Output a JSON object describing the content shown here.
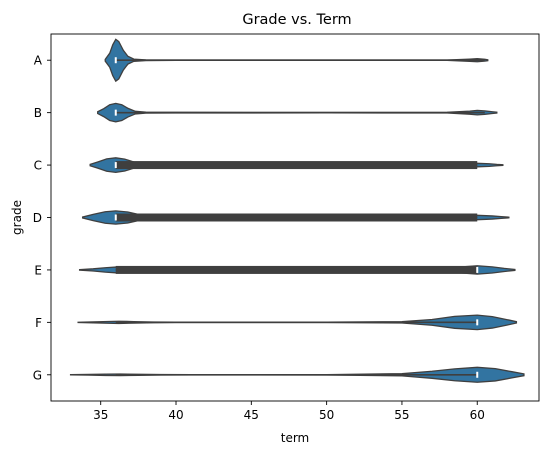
{
  "chart_data": {
    "type": "violin",
    "title": "Grade vs. Term",
    "xlabel": "term",
    "ylabel": "grade",
    "orientation": "horizontal",
    "categories": [
      "A",
      "B",
      "C",
      "D",
      "E",
      "F",
      "G"
    ],
    "xlim": [
      31.7,
      64.1
    ],
    "xticks": [
      35,
      40,
      45,
      50,
      55,
      60
    ],
    "grid": false,
    "color": "#3274a1",
    "box_color": "#3f3f3f",
    "median_color": "#ffffff",
    "violins": [
      {
        "category": "A",
        "min": 36,
        "max": 60.5,
        "q1": 36,
        "median": 36,
        "q3": 36,
        "profile": [
          [
            35.3,
            0.04
          ],
          [
            35.6,
            0.32
          ],
          [
            35.8,
            0.7
          ],
          [
            36.0,
            0.95
          ],
          [
            36.2,
            0.85
          ],
          [
            36.5,
            0.45
          ],
          [
            36.8,
            0.18
          ],
          [
            37.2,
            0.05
          ],
          [
            38,
            0.015
          ],
          [
            40,
            0.008
          ],
          [
            50,
            0.006
          ],
          [
            58,
            0.008
          ],
          [
            59.5,
            0.05
          ],
          [
            60,
            0.07
          ],
          [
            60.5,
            0.04
          ],
          [
            60.7,
            0.02
          ]
        ]
      },
      {
        "category": "B",
        "min": 36,
        "max": 60.5,
        "q1": 36,
        "median": 36,
        "q3": 36,
        "profile": [
          [
            34.8,
            0.04
          ],
          [
            35.2,
            0.18
          ],
          [
            35.6,
            0.36
          ],
          [
            36.0,
            0.42
          ],
          [
            36.4,
            0.36
          ],
          [
            36.8,
            0.2
          ],
          [
            37.3,
            0.06
          ],
          [
            38,
            0.02
          ],
          [
            40,
            0.015
          ],
          [
            50,
            0.012
          ],
          [
            58,
            0.015
          ],
          [
            59.5,
            0.07
          ],
          [
            60,
            0.1
          ],
          [
            60.5,
            0.08
          ],
          [
            61,
            0.04
          ],
          [
            61.3,
            0.02
          ]
        ]
      },
      {
        "category": "C",
        "min": 36,
        "max": 60,
        "q1": 36,
        "median": 36,
        "q3": 60,
        "profile": [
          [
            34.3,
            0.03
          ],
          [
            34.8,
            0.14
          ],
          [
            35.4,
            0.28
          ],
          [
            36.0,
            0.33
          ],
          [
            36.6,
            0.27
          ],
          [
            37.2,
            0.14
          ],
          [
            38,
            0.06
          ],
          [
            40,
            0.03
          ],
          [
            50,
            0.025
          ],
          [
            58,
            0.03
          ],
          [
            59.5,
            0.06
          ],
          [
            60,
            0.08
          ],
          [
            60.8,
            0.06
          ],
          [
            61.3,
            0.03
          ],
          [
            61.7,
            0.015
          ]
        ]
      },
      {
        "category": "D",
        "min": 36,
        "max": 60,
        "q1": 36,
        "median": 36,
        "q3": 60,
        "profile": [
          [
            33.8,
            0.02
          ],
          [
            34.5,
            0.14
          ],
          [
            35.3,
            0.26
          ],
          [
            36.0,
            0.3
          ],
          [
            36.8,
            0.25
          ],
          [
            37.5,
            0.14
          ],
          [
            38.5,
            0.06
          ],
          [
            40,
            0.03
          ],
          [
            50,
            0.025
          ],
          [
            58,
            0.04
          ],
          [
            59.5,
            0.08
          ],
          [
            60,
            0.1
          ],
          [
            61,
            0.07
          ],
          [
            61.6,
            0.04
          ],
          [
            62.1,
            0.015
          ]
        ]
      },
      {
        "category": "E",
        "min": 36,
        "max": 60,
        "q1": 36,
        "median": 60,
        "q3": 60,
        "profile": [
          [
            33.6,
            0.01
          ],
          [
            34.5,
            0.05
          ],
          [
            35.3,
            0.1
          ],
          [
            36.0,
            0.13
          ],
          [
            36.8,
            0.1
          ],
          [
            37.8,
            0.05
          ],
          [
            39,
            0.03
          ],
          [
            45,
            0.025
          ],
          [
            55,
            0.03
          ],
          [
            58,
            0.07
          ],
          [
            59.2,
            0.15
          ],
          [
            60,
            0.19
          ],
          [
            61,
            0.14
          ],
          [
            61.8,
            0.07
          ],
          [
            62.5,
            0.02
          ]
        ]
      },
      {
        "category": "F",
        "min": 36,
        "max": 60,
        "q1": 60,
        "median": 60,
        "q3": 60,
        "profile": [
          [
            33.5,
            0.005
          ],
          [
            34.5,
            0.02
          ],
          [
            35.5,
            0.04
          ],
          [
            36.2,
            0.05
          ],
          [
            37.2,
            0.035
          ],
          [
            38.5,
            0.015
          ],
          [
            40,
            0.008
          ],
          [
            50,
            0.008
          ],
          [
            55,
            0.03
          ],
          [
            57,
            0.13
          ],
          [
            58.5,
            0.27
          ],
          [
            60,
            0.33
          ],
          [
            61,
            0.26
          ],
          [
            62,
            0.12
          ],
          [
            62.6,
            0.03
          ]
        ]
      },
      {
        "category": "G",
        "min": 36,
        "max": 60,
        "q1": 60,
        "median": 60,
        "q3": 60,
        "profile": [
          [
            33.0,
            0.004
          ],
          [
            34.2,
            0.015
          ],
          [
            35.3,
            0.03
          ],
          [
            36.3,
            0.035
          ],
          [
            37.5,
            0.025
          ],
          [
            39,
            0.01
          ],
          [
            41,
            0.005
          ],
          [
            50,
            0.006
          ],
          [
            55,
            0.05
          ],
          [
            57,
            0.16
          ],
          [
            58.5,
            0.27
          ],
          [
            60,
            0.34
          ],
          [
            61.2,
            0.28
          ],
          [
            62.3,
            0.14
          ],
          [
            63.1,
            0.04
          ]
        ]
      }
    ]
  }
}
